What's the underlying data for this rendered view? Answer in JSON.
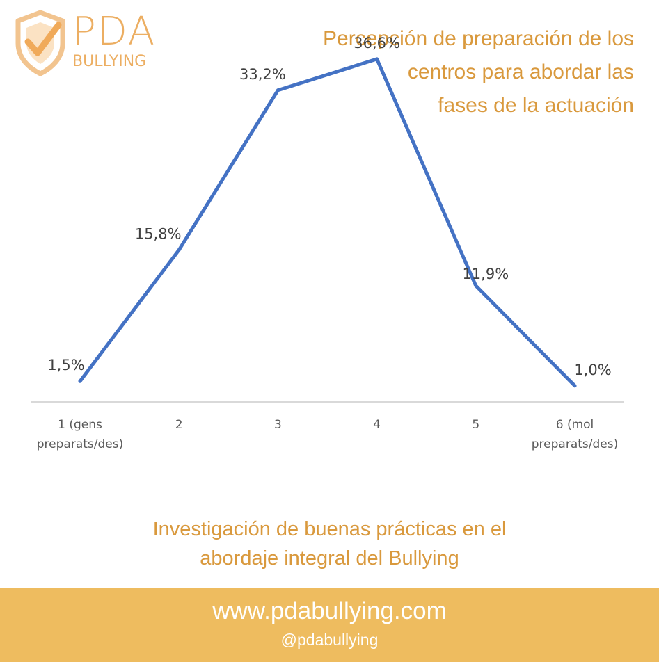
{
  "logo": {
    "title": "PDA",
    "subtitle": "BULLYING",
    "icon": "shield-check-icon"
  },
  "header": {
    "title": "Percepción de preparación de los\ncentros para abordar las\nfases de  la actuación"
  },
  "chart_data": {
    "type": "line",
    "categories": [
      "1 (gens\npreparats/des)",
      "2",
      "3",
      "4",
      "5",
      "6 (mol\npreparats/des)"
    ],
    "series": [
      {
        "values": [
          1.5,
          15.8,
          33.2,
          36.6,
          11.9,
          1.0
        ],
        "labels": [
          "1,5%",
          "15,8%",
          "33,2%",
          "36,6%",
          "11,9%",
          "1,0%"
        ]
      }
    ],
    "ylim": [
      0,
      40
    ],
    "grid": false,
    "legend": "none",
    "line_color": "#4472c4"
  },
  "footer_text": {
    "subtitle": "Investigación de buenas prácticas en el\nabordaje integral del Bullying",
    "url": "www.pdabullying.com",
    "handle": "@pdabullying"
  },
  "colors": {
    "accent": "#d9993d",
    "footer_bg": "#eebc5f",
    "axis": "#d9d9d9",
    "data_label": "#404040"
  }
}
